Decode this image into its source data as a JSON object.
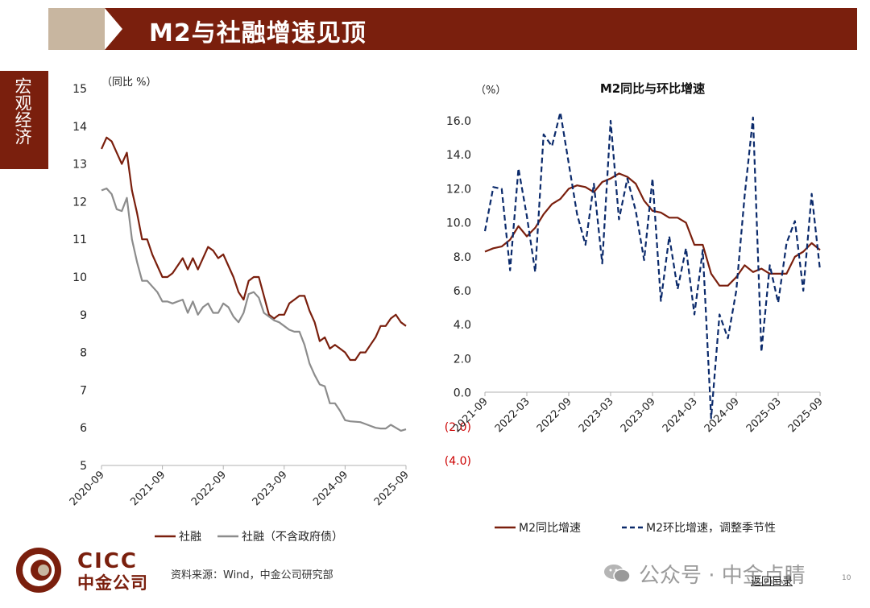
{
  "header": {
    "title": "M2与社融增速见顶"
  },
  "side_tab": {
    "label": "宏观经济"
  },
  "colors": {
    "dark_red": "#7a1f0d",
    "tan": "#c8b6a0",
    "gray_series": "#8c8c8c",
    "navy_series": "#0b2a6b",
    "negative_tick": "#cc0000"
  },
  "chart_data": [
    {
      "type": "line",
      "title": "",
      "ylabel": "（同比 %）",
      "ylim": [
        5,
        15
      ],
      "yticks": [
        "5",
        "6",
        "7",
        "8",
        "9",
        "10",
        "11",
        "12",
        "13",
        "14",
        "15"
      ],
      "x_start": "2020-09",
      "x_end": "2025-09",
      "xtick_labels": [
        "2020-09",
        "2021-09",
        "2022-09",
        "2023-09",
        "2024-09",
        "2025-09"
      ],
      "legend_position": "bottom",
      "series": [
        {
          "name": "社融",
          "color": "#7a1f0d",
          "values": [
            13.4,
            13.7,
            13.6,
            13.3,
            13.0,
            13.3,
            12.3,
            11.7,
            11.0,
            11.0,
            10.6,
            10.3,
            10.0,
            10.0,
            10.1,
            10.3,
            10.5,
            10.2,
            10.5,
            10.2,
            10.5,
            10.8,
            10.7,
            10.5,
            10.6,
            10.3,
            10.0,
            9.6,
            9.4,
            9.9,
            10.0,
            10.0,
            9.5,
            9.0,
            8.9,
            9.0,
            9.0,
            9.3,
            9.4,
            9.5,
            9.5,
            9.1,
            8.8,
            8.3,
            8.4,
            8.1,
            8.2,
            8.1,
            8.0,
            7.8,
            7.8,
            8.0,
            8.0,
            8.2,
            8.4,
            8.7,
            8.7,
            8.9,
            9.0,
            8.8,
            8.7
          ]
        },
        {
          "name": "社融（不含政府债）",
          "color": "#8c8c8c",
          "values": [
            12.3,
            12.35,
            12.2,
            11.8,
            11.75,
            12.1,
            11.0,
            10.4,
            9.9,
            9.9,
            9.75,
            9.6,
            9.35,
            9.35,
            9.3,
            9.35,
            9.4,
            9.05,
            9.35,
            9.0,
            9.2,
            9.3,
            9.05,
            9.05,
            9.3,
            9.2,
            8.95,
            8.8,
            9.05,
            9.55,
            9.6,
            9.45,
            9.05,
            8.95,
            8.85,
            8.8,
            8.7,
            8.6,
            8.55,
            8.55,
            8.2,
            7.7,
            7.4,
            7.15,
            7.1,
            6.65,
            6.65,
            6.45,
            6.2,
            6.17,
            6.16,
            6.15,
            6.1,
            6.05,
            6.0,
            5.98,
            5.98,
            6.08,
            6.0,
            5.92,
            5.96
          ]
        }
      ]
    },
    {
      "type": "line",
      "title": "M2同比与环比增速",
      "ylabel": "（%）",
      "ylim": [
        -4,
        16
      ],
      "yticks": [
        "(4.0)",
        "(2.0)",
        "0.0",
        "2.0",
        "4.0",
        "6.0",
        "8.0",
        "10.0",
        "12.0",
        "14.0",
        "16.0"
      ],
      "x_start": "2021-09",
      "x_end": "2025-09",
      "xtick_labels": [
        "2021-09",
        "2022-03",
        "2022-09",
        "2023-03",
        "2023-09",
        "2024-03",
        "2024-09",
        "2025-03",
        "2025-09"
      ],
      "legend_position": "bottom",
      "series": [
        {
          "name": "M2同比增速",
          "color": "#7a1f0d",
          "style": "solid",
          "values": [
            8.3,
            8.5,
            8.6,
            9.0,
            9.8,
            9.2,
            9.7,
            10.5,
            11.1,
            11.4,
            12.0,
            12.2,
            12.1,
            11.8,
            12.4,
            12.6,
            12.9,
            12.7,
            12.3,
            11.3,
            10.7,
            10.6,
            10.3,
            10.3,
            10.0,
            8.7,
            8.7,
            7.0,
            6.3,
            6.3,
            6.8,
            7.5,
            7.1,
            7.3,
            7.0,
            7.0,
            7.0,
            8.0,
            8.3,
            8.8,
            8.4
          ]
        },
        {
          "name": "M2环比增速，调整季节性",
          "color": "#0b2a6b",
          "style": "dashed",
          "values": [
            9.5,
            12.1,
            12.0,
            7.2,
            13.2,
            10.4,
            7.1,
            15.2,
            14.5,
            16.5,
            13.5,
            10.5,
            8.7,
            12.3,
            7.6,
            16.0,
            10.2,
            12.6,
            10.7,
            7.8,
            12.6,
            5.4,
            9.2,
            6.1,
            8.5,
            4.6,
            8.4,
            -1.5,
            4.6,
            3.2,
            6.0,
            11.6,
            16.2,
            2.4,
            7.5,
            5.3,
            8.8,
            10.1,
            6.0,
            11.7,
            7.2
          ]
        }
      ]
    }
  ],
  "footer": {
    "brand_en": "CICC",
    "brand_cn": "中金公司",
    "source": "资料来源：Wind，中金公司研究部",
    "watermark": "公众号 · 中金点睛",
    "back_link": "返回目录",
    "page_number": "10"
  }
}
